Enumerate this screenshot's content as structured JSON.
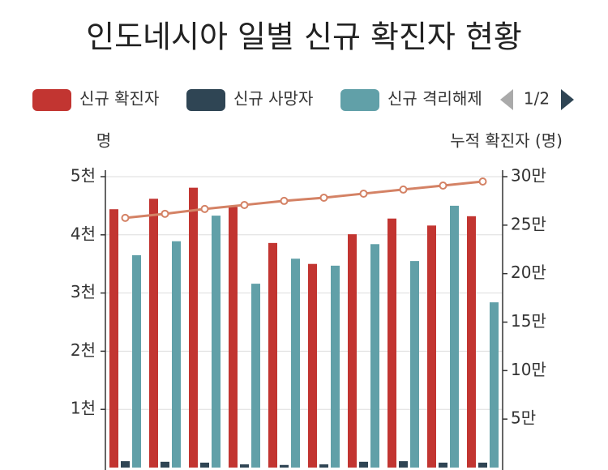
{
  "chart_data": {
    "type": "bar",
    "title": "인도네시아 일별 신규 확진자 현황",
    "y_label": "명",
    "y2_label": "누적 확진자 (명)",
    "legend_page": "1/2",
    "categories": [
      null,
      null,
      null,
      null,
      null,
      null,
      null,
      null,
      null,
      null
    ],
    "series": [
      {
        "name": "신규 확진자",
        "color": "#c23531",
        "values": [
          4440,
          4620,
          4810,
          4480,
          3860,
          3500,
          4010,
          4280,
          4160,
          4320
        ]
      },
      {
        "name": "신규 사망자",
        "color": "#2f4554",
        "values": [
          110,
          100,
          85,
          55,
          45,
          55,
          100,
          110,
          85,
          85
        ]
      },
      {
        "name": "신규 격리해제",
        "color": "#61a0a8",
        "values": [
          3650,
          3890,
          4330,
          3160,
          3590,
          3470,
          3840,
          3550,
          4500,
          2840
        ]
      },
      {
        "type": "line",
        "axis": "y2",
        "color": "#d48265",
        "values": [
          257500,
          261700,
          266700,
          270800,
          275000,
          278300,
          282500,
          286700,
          290800,
          295000
        ]
      }
    ],
    "ylim": [
      0,
      5000
    ],
    "yticks": [
      {
        "value": 1000,
        "label": "1천"
      },
      {
        "value": 2000,
        "label": "2천"
      },
      {
        "value": 3000,
        "label": "3천"
      },
      {
        "value": 4000,
        "label": "4천"
      },
      {
        "value": 5000,
        "label": "5천"
      }
    ],
    "y2lim": [
      0,
      300000
    ],
    "y2ticks": [
      {
        "value": 50000,
        "label": "5만"
      },
      {
        "value": 100000,
        "label": "10만"
      },
      {
        "value": 150000,
        "label": "15만"
      },
      {
        "value": 200000,
        "label": "20만"
      },
      {
        "value": 250000,
        "label": "25만"
      },
      {
        "value": 300000,
        "label": "30만"
      }
    ],
    "grid": true
  }
}
